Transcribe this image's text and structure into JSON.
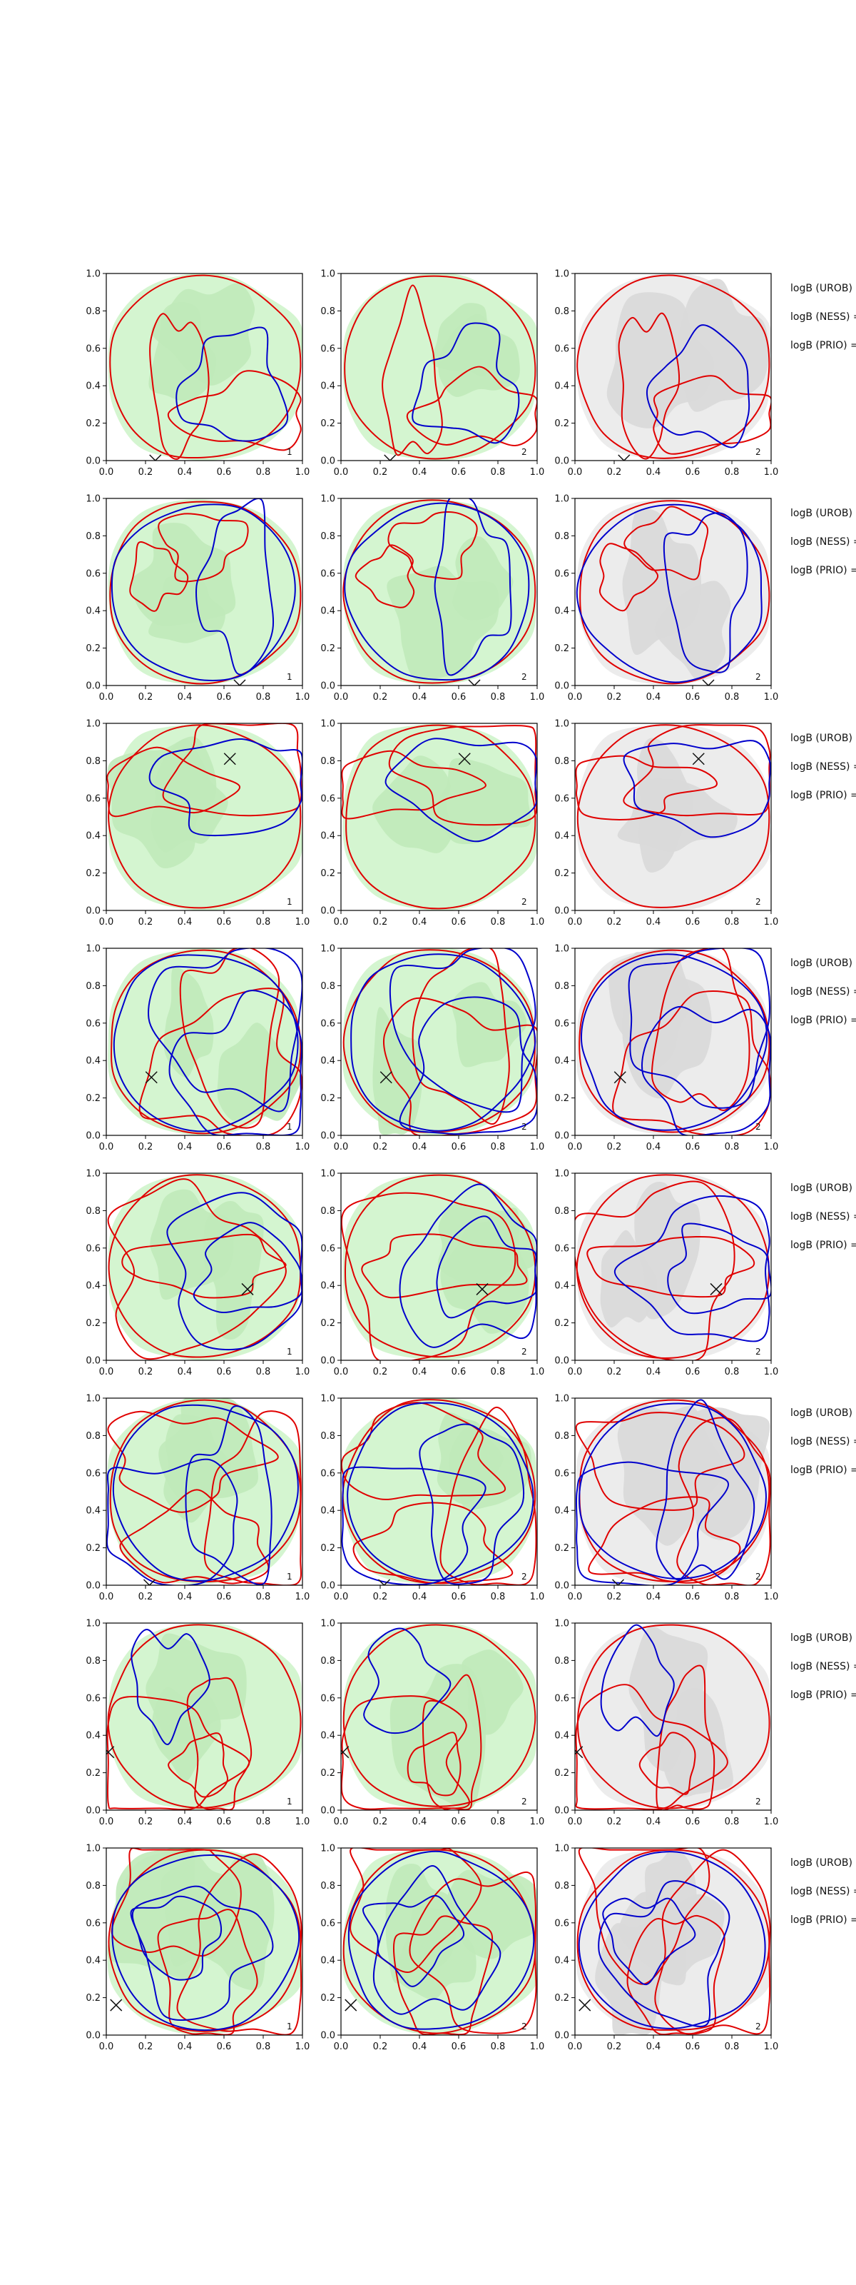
{
  "chart_data": {
    "type": "contour",
    "layout": {
      "rows": 8,
      "cols": 3
    },
    "x_ticks": [
      "0.0",
      "0.2",
      "0.4",
      "0.6",
      "0.8",
      "1.0"
    ],
    "y_ticks": [
      "0.0",
      "0.2",
      "0.4",
      "0.6",
      "0.8",
      "1.0"
    ],
    "xlim": [
      0,
      1
    ],
    "ylim": [
      0,
      1
    ],
    "grid": false,
    "colors": {
      "contour_a": "#e00000",
      "contour_b": "#0000cc",
      "fill_green_light": "#d4f5d0",
      "fill_green_mid": "#c0eab9",
      "fill_gray_light": "#ececec",
      "fill_gray_mid": "#d9d9d9",
      "marker": "#111111"
    },
    "panel_fills": [
      "green",
      "green",
      "gray"
    ],
    "panel_numbers": [
      "1",
      "2",
      "2"
    ],
    "side_labels": [
      "logB (UROB) =",
      "logB (NESS) =",
      "logB (PRIO) ="
    ],
    "markers": [
      {
        "row": 0,
        "x": 0.25,
        "y": 0.0
      },
      {
        "row": 1,
        "x": 0.68,
        "y": 0.0
      },
      {
        "row": 2,
        "x": 0.63,
        "y": 0.81
      },
      {
        "row": 3,
        "x": 0.23,
        "y": 0.31
      },
      {
        "row": 4,
        "x": 0.72,
        "y": 0.38
      },
      {
        "row": 5,
        "x": 0.22,
        "y": 0.0
      },
      {
        "row": 6,
        "x": 0.01,
        "y": 0.31
      },
      {
        "row": 7,
        "x": 0.05,
        "y": 0.16
      }
    ]
  }
}
